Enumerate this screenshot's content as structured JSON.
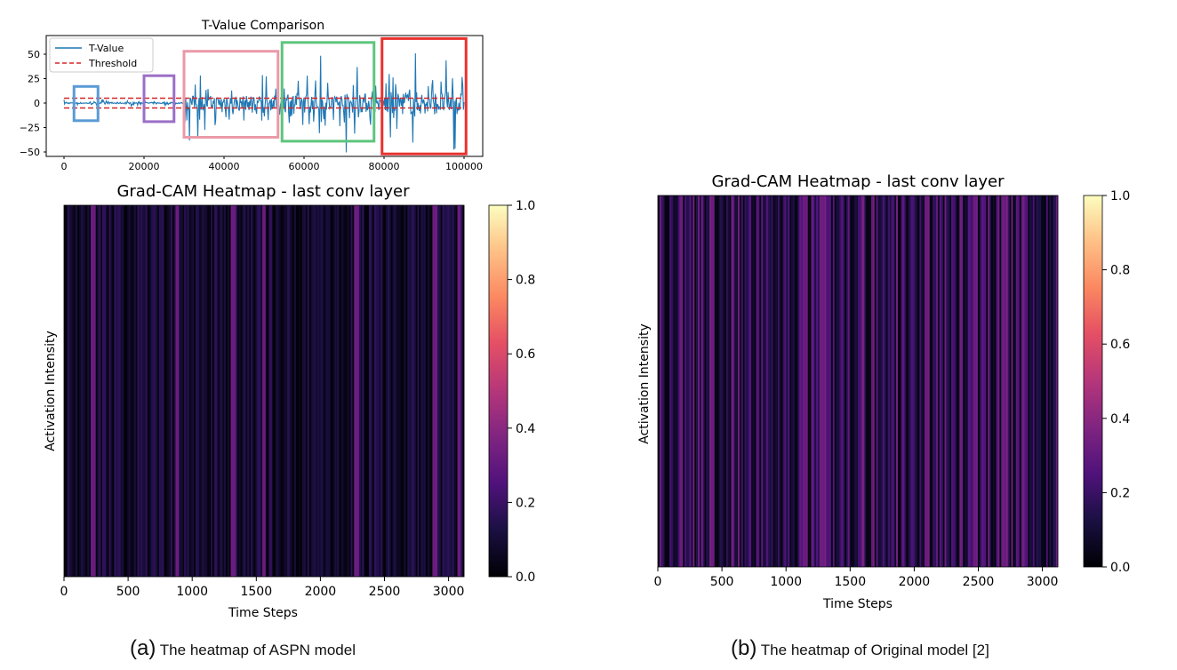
{
  "chart_data": [
    {
      "type": "line",
      "title": "T-Value Comparison",
      "xlabel": "",
      "ylabel": "",
      "xlim": [
        -4000,
        104000
      ],
      "ylim": [
        -52,
        66
      ],
      "xticks": [
        "0",
        "20000",
        "40000",
        "60000",
        "80000",
        "100000"
      ],
      "yticks": [
        "50",
        "25",
        "0",
        "−25",
        "−50"
      ],
      "legend_position": "top-left",
      "series": [
        {
          "name": "T-Value",
          "color": "#1f77b4",
          "style": "solid",
          "segments": [
            {
              "x": [
                0,
                30000
              ],
              "amplitude": 4
            },
            {
              "x": [
                30000,
                55000
              ],
              "amplitude": 42
            },
            {
              "x": [
                55000,
                78000
              ],
              "amplitude": 55
            },
            {
              "x": [
                78000,
                80000
              ],
              "amplitude": 20
            },
            {
              "x": [
                80000,
                100000
              ],
              "amplitude": 64
            }
          ]
        },
        {
          "name": "Threshold",
          "color": "#d62728",
          "style": "dashed",
          "values": [
            5,
            -5
          ]
        }
      ],
      "highlight_boxes": [
        {
          "color": "#5b9bd5",
          "x": [
            2500,
            8500
          ],
          "y": [
            17,
            -18
          ]
        },
        {
          "color": "#9b6fc6",
          "x": [
            20000,
            27500
          ],
          "y": [
            28,
            -19
          ]
        },
        {
          "color": "#ea9aa8",
          "x": [
            30000,
            53500
          ],
          "y": [
            53,
            -35
          ]
        },
        {
          "color": "#5ec57d",
          "x": [
            54500,
            77500
          ],
          "y": [
            62,
            -39
          ]
        },
        {
          "color": "#e8312f",
          "x": [
            79500,
            100500
          ],
          "y": [
            66,
            -52
          ]
        }
      ]
    },
    {
      "type": "heatmap",
      "title": "Grad-CAM Heatmap - last conv layer",
      "xlabel": "Time Steps",
      "ylabel": "Activation Intensity",
      "xlim": [
        0,
        3120
      ],
      "xticks": [
        "0",
        "500",
        "1000",
        "1500",
        "2000",
        "2500",
        "3000"
      ],
      "colorbar": {
        "range": [
          0,
          1
        ],
        "ticks": [
          "0.0",
          "0.2",
          "0.4",
          "0.6",
          "0.8",
          "1.0"
        ],
        "colormap": "magma"
      },
      "intensity_profile": {
        "overall_mean": 0.1,
        "bright_columns_at": [
          230,
          885,
          1320,
          1560,
          2280,
          2890,
          3080
        ]
      }
    },
    {
      "type": "heatmap",
      "title": "Grad-CAM Heatmap - last conv layer",
      "xlabel": "Time Steps",
      "ylabel": "Activation Intensity",
      "xlim": [
        0,
        3120
      ],
      "xticks": [
        "0",
        "500",
        "1000",
        "1500",
        "2000",
        "2500",
        "3000"
      ],
      "colorbar": {
        "range": [
          0,
          1
        ],
        "ticks": [
          "0.0",
          "0.2",
          "0.4",
          "0.6",
          "0.8",
          "1.0"
        ],
        "colormap": "magma"
      },
      "intensity_profile": {
        "overall_mean": 0.2,
        "bright_columns_at": [
          180,
          420,
          1150,
          1280,
          1600,
          2100,
          2480,
          2700
        ]
      }
    }
  ],
  "captions": [
    {
      "tag": "(a)",
      "text": "The heatmap of ASPN model"
    },
    {
      "tag": "(b)",
      "text": "The heatmap of Original model [2]"
    }
  ]
}
